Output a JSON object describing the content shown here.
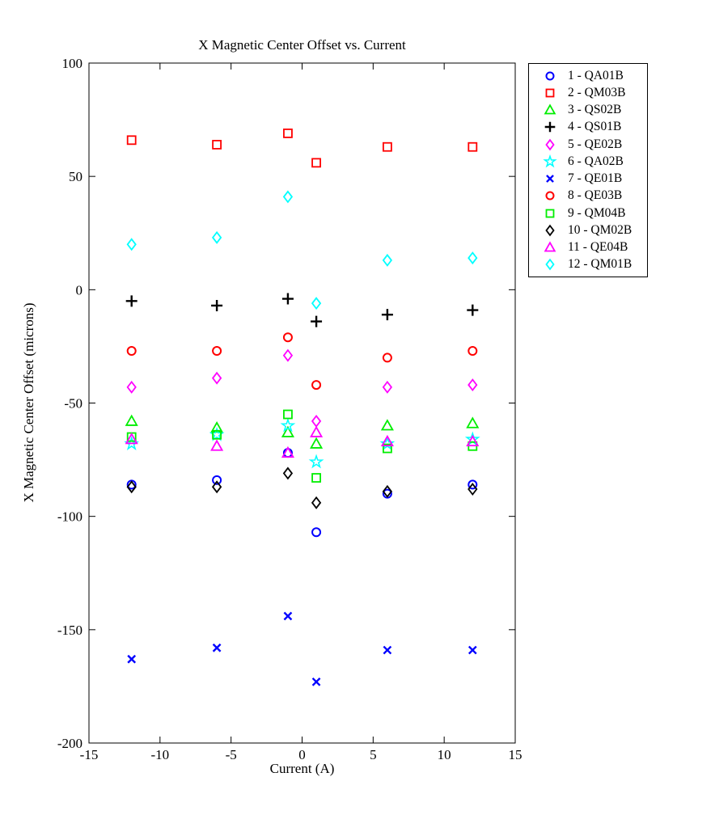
{
  "chart_data": {
    "type": "scatter",
    "title": "X Magnetic Center Offset vs. Current",
    "xlabel": "Current (A)",
    "ylabel": "X Magnetic Center Offset (microns)",
    "xlim": [
      -15,
      15
    ],
    "ylim": [
      -200,
      100
    ],
    "x_ticks": [
      "-15",
      "-10",
      "-5",
      "0",
      "5",
      "10",
      "15"
    ],
    "x_tick_values": [
      -15,
      -10,
      -5,
      0,
      5,
      10,
      15
    ],
    "y_ticks": [
      "100",
      "50",
      "0",
      "-50",
      "-100",
      "-150",
      "-200"
    ],
    "y_tick_values": [
      100,
      50,
      0,
      -50,
      -100,
      -150,
      -200
    ],
    "grid": false,
    "legend_position": "outside-upper-right",
    "x": [
      -12,
      -6,
      -1,
      1,
      6,
      12
    ],
    "series": [
      {
        "name": "1 - QA01B",
        "marker": "circle",
        "color": "#0000FF",
        "values": [
          -86,
          -84,
          -72,
          -107,
          -90,
          -86
        ]
      },
      {
        "name": "2 - QM03B",
        "marker": "square",
        "color": "#FF0000",
        "values": [
          66,
          64,
          69,
          56,
          63,
          63
        ]
      },
      {
        "name": "3 - QS02B",
        "marker": "triangle",
        "color": "#00EE00",
        "values": [
          -58,
          -61,
          -63,
          -68,
          -60,
          -59
        ]
      },
      {
        "name": "4 - QS01B",
        "marker": "plus",
        "color": "#000000",
        "values": [
          -5,
          -7,
          -4,
          -14,
          -11,
          -9
        ]
      },
      {
        "name": "5 - QE02B",
        "marker": "diamond",
        "color": "#FF00FF",
        "values": [
          -43,
          -39,
          -29,
          -58,
          -43,
          -42
        ]
      },
      {
        "name": "6 - QA02B",
        "marker": "star",
        "color": "#00FFFF",
        "values": [
          -68,
          -64,
          -60,
          -76,
          -68,
          -66
        ]
      },
      {
        "name": "7 - QE01B",
        "marker": "x",
        "color": "#0000FF",
        "values": [
          -163,
          -158,
          -144,
          -173,
          -159,
          -159
        ]
      },
      {
        "name": "8 - QE03B",
        "marker": "circle",
        "color": "#FF0000",
        "values": [
          -27,
          -27,
          -21,
          -42,
          -30,
          -27
        ]
      },
      {
        "name": "9 - QM04B",
        "marker": "square",
        "color": "#00EE00",
        "values": [
          -65,
          -64,
          -55,
          -83,
          -70,
          -69
        ]
      },
      {
        "name": "10 - QM02B",
        "marker": "diamond",
        "color": "#000000",
        "values": [
          -87,
          -87,
          -81,
          -94,
          -89,
          -88
        ]
      },
      {
        "name": "11 - QE04B",
        "marker": "triangle",
        "color": "#FF00FF",
        "values": [
          -66,
          -69,
          -72,
          -63,
          -67,
          -67
        ]
      },
      {
        "name": "12 - QM01B",
        "marker": "diamond",
        "color": "#00FFFF",
        "values": [
          20,
          23,
          41,
          -6,
          13,
          14
        ]
      }
    ]
  }
}
